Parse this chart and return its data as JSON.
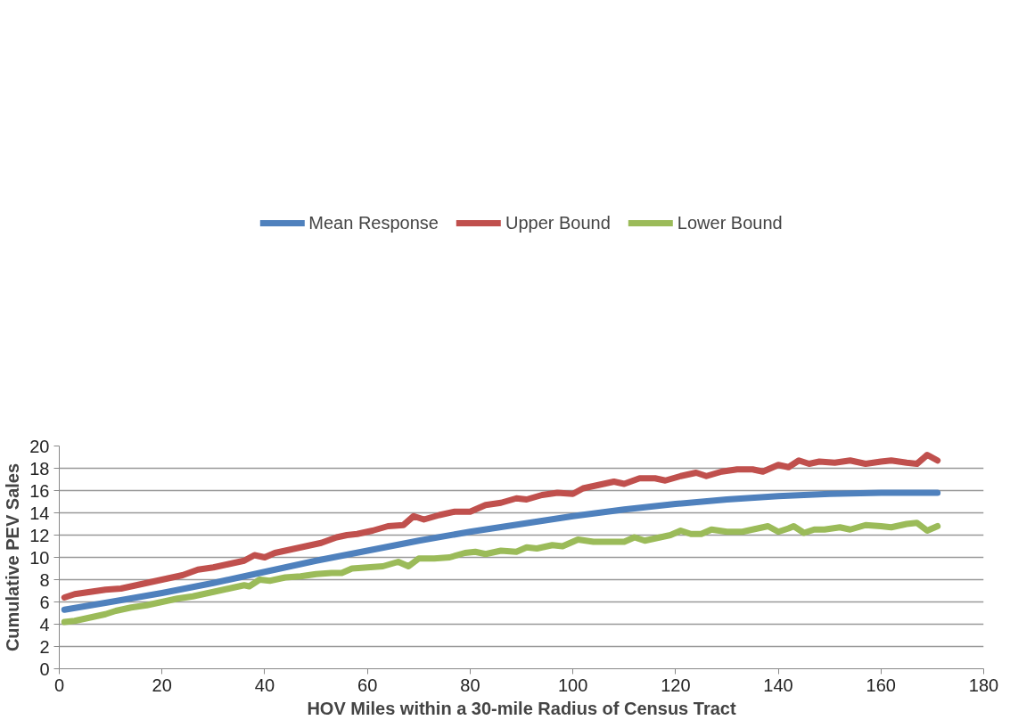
{
  "chart_data": {
    "type": "line",
    "xlabel": "HOV Miles within a 30-mile Radius of Census Tract",
    "ylabel": "Cumulative PEV Sales",
    "xlim": [
      0,
      180
    ],
    "xticks": [
      0,
      20,
      40,
      60,
      80,
      100,
      120,
      140,
      160,
      180
    ],
    "ylim": [
      0,
      20
    ],
    "yticks": [
      0,
      2,
      4,
      6,
      8,
      10,
      12,
      14,
      16,
      18,
      20
    ],
    "grid": "y",
    "legend": "top",
    "marker": "none",
    "line_style": "solid",
    "series": [
      {
        "name": "Mean Response",
        "color": "#4f81bd",
        "x": [
          1,
          10,
          20,
          30,
          40,
          50,
          60,
          70,
          80,
          90,
          100,
          110,
          120,
          130,
          140,
          150,
          160,
          171
        ],
        "values": [
          5.3,
          6.0,
          6.8,
          7.7,
          8.7,
          9.7,
          10.6,
          11.5,
          12.3,
          13.0,
          13.7,
          14.3,
          14.8,
          15.2,
          15.5,
          15.7,
          15.8,
          15.8
        ]
      },
      {
        "name": "Upper Bound",
        "color": "#c0504d",
        "x": [
          1,
          3,
          6,
          9,
          12,
          15,
          18,
          21,
          24,
          27,
          30,
          33,
          36,
          38,
          40,
          42,
          45,
          48,
          51,
          54,
          56,
          58,
          61,
          64,
          67,
          69,
          71,
          74,
          77,
          80,
          83,
          86,
          89,
          91,
          94,
          97,
          100,
          102,
          105,
          108,
          110,
          113,
          116,
          118,
          121,
          124,
          126,
          129,
          132,
          135,
          137,
          140,
          142,
          144,
          146,
          148,
          151,
          154,
          157,
          160,
          162,
          165,
          167,
          169,
          171
        ],
        "values": [
          6.4,
          6.7,
          6.9,
          7.1,
          7.2,
          7.5,
          7.8,
          8.1,
          8.4,
          8.9,
          9.1,
          9.4,
          9.7,
          10.2,
          10.0,
          10.4,
          10.7,
          11.0,
          11.3,
          11.8,
          12.0,
          12.1,
          12.4,
          12.8,
          12.9,
          13.7,
          13.4,
          13.8,
          14.1,
          14.1,
          14.7,
          14.9,
          15.3,
          15.2,
          15.6,
          15.8,
          15.7,
          16.2,
          16.5,
          16.8,
          16.6,
          17.1,
          17.1,
          16.9,
          17.3,
          17.6,
          17.3,
          17.7,
          17.9,
          17.9,
          17.7,
          18.3,
          18.1,
          18.7,
          18.4,
          18.6,
          18.5,
          18.7,
          18.4,
          18.6,
          18.7,
          18.5,
          18.4,
          19.2,
          18.7
        ]
      },
      {
        "name": "Lower Bound",
        "color": "#9bbb59",
        "x": [
          1,
          3,
          6,
          9,
          11,
          14,
          17,
          20,
          23,
          26,
          28,
          31,
          34,
          36,
          37,
          39,
          41,
          44,
          47,
          50,
          53,
          55,
          57,
          60,
          63,
          66,
          68,
          70,
          73,
          76,
          79,
          81,
          83,
          86,
          89,
          91,
          93,
          96,
          98,
          101,
          104,
          107,
          110,
          112,
          114,
          117,
          119,
          121,
          123,
          125,
          127,
          130,
          133,
          136,
          138,
          140,
          142,
          143,
          145,
          147,
          149,
          152,
          154,
          157,
          160,
          162,
          165,
          167,
          169,
          171
        ],
        "values": [
          4.2,
          4.3,
          4.6,
          4.9,
          5.2,
          5.5,
          5.7,
          6.0,
          6.3,
          6.5,
          6.7,
          7.0,
          7.3,
          7.5,
          7.4,
          8.0,
          7.9,
          8.2,
          8.3,
          8.5,
          8.6,
          8.6,
          9.0,
          9.1,
          9.2,
          9.6,
          9.2,
          9.9,
          9.9,
          10.0,
          10.4,
          10.5,
          10.3,
          10.6,
          10.5,
          10.9,
          10.8,
          11.1,
          11.0,
          11.6,
          11.4,
          11.4,
          11.4,
          11.8,
          11.5,
          11.8,
          12.0,
          12.4,
          12.1,
          12.1,
          12.5,
          12.3,
          12.3,
          12.6,
          12.8,
          12.3,
          12.6,
          12.8,
          12.2,
          12.5,
          12.5,
          12.7,
          12.5,
          12.9,
          12.8,
          12.7,
          13.0,
          13.1,
          12.4,
          12.8
        ]
      }
    ]
  }
}
